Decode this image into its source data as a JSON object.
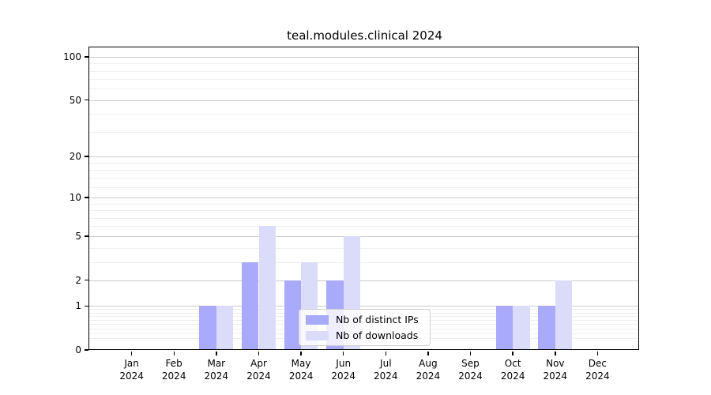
{
  "title": "teal.modules.clinical 2024",
  "chart_data": {
    "type": "bar",
    "title": "teal.modules.clinical 2024",
    "categories": [
      "Jan",
      "Feb",
      "Mar",
      "Apr",
      "May",
      "Jun",
      "Jul",
      "Aug",
      "Sep",
      "Oct",
      "Nov",
      "Dec"
    ],
    "x_year_label": "2024",
    "series": [
      {
        "name": "Nb of distinct IPs",
        "color": "#aaaafa",
        "values": [
          0,
          0,
          1,
          3,
          2,
          2,
          0,
          0,
          0,
          1,
          1,
          0
        ]
      },
      {
        "name": "Nb of downloads",
        "color": "#dbdbfa",
        "values": [
          0,
          0,
          1,
          6,
          3,
          5,
          0,
          0,
          0,
          1,
          2,
          0
        ]
      }
    ],
    "xlabel": "",
    "ylabel": "",
    "yscale": "log1p",
    "yticks": [
      0,
      1,
      2,
      5,
      10,
      20,
      50,
      100
    ],
    "y_minor_ticks": [
      0.2,
      0.3,
      0.4,
      0.5,
      0.6,
      0.7,
      0.8,
      0.9,
      3,
      4,
      6,
      7,
      8,
      9,
      12,
      14,
      16,
      18,
      30,
      40,
      60,
      70,
      80,
      90
    ],
    "ylim": [
      0,
      116
    ],
    "grid": true,
    "grid_major_color": "#cccccc",
    "grid_minor_color": "#efefef",
    "legend_position": "lower center",
    "legend_entries": [
      "Nb of distinct IPs",
      "Nb of downloads"
    ]
  }
}
